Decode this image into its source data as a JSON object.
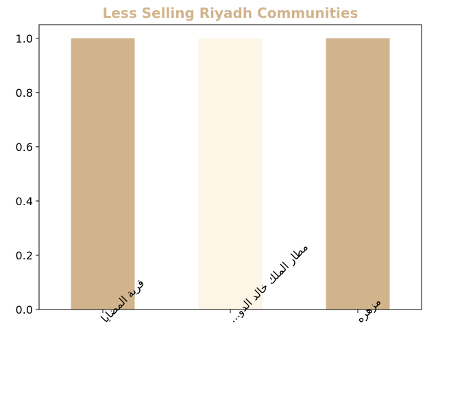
{
  "chart_data": {
    "type": "bar",
    "title": "Less Selling Riyadh Communities",
    "title_color": "#d2b48c",
    "categories": [
      "قرية المضايا",
      "مطار الملك خالد الدو...",
      "مزهره"
    ],
    "values": [
      1,
      1,
      1
    ],
    "bar_colors": [
      "#d2b48c",
      "#fdf5e6",
      "#d2b48c"
    ],
    "ylim": [
      0,
      1.05
    ],
    "yticks": [
      "0.0",
      "0.2",
      "0.4",
      "0.6",
      "0.8",
      "1.0"
    ],
    "xlabel": "",
    "ylabel": "",
    "grid": false
  }
}
